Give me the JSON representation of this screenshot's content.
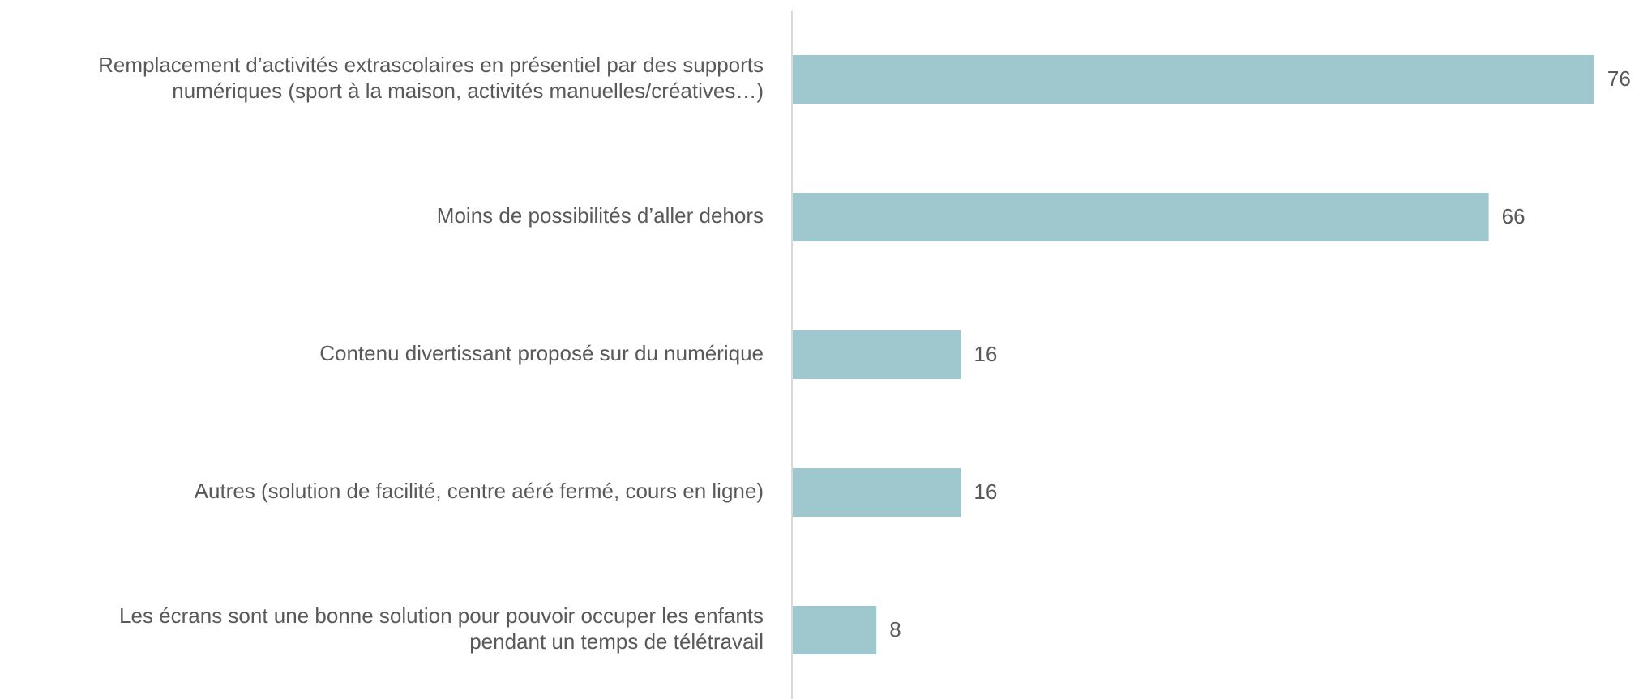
{
  "chart_data": {
    "type": "bar",
    "orientation": "horizontal",
    "categories": [
      [
        "Remplacement d’activités extrascolaires en présentiel par des supports",
        "numériques (sport à la maison, activités manuelles/créatives…)"
      ],
      [
        "Moins de possibilités d’aller dehors"
      ],
      [
        "Contenu divertissant proposé sur du numérique"
      ],
      [
        "Autres (solution de facilité, centre aéré fermé, cours en ligne)"
      ],
      [
        "Les écrans sont une bonne solution pour pouvoir occuper les enfants",
        "pendant un temps de télétravail"
      ]
    ],
    "values": [
      76,
      66,
      16,
      16,
      8
    ],
    "color": "#9fc8ce",
    "xlim": [
      0,
      80
    ]
  }
}
